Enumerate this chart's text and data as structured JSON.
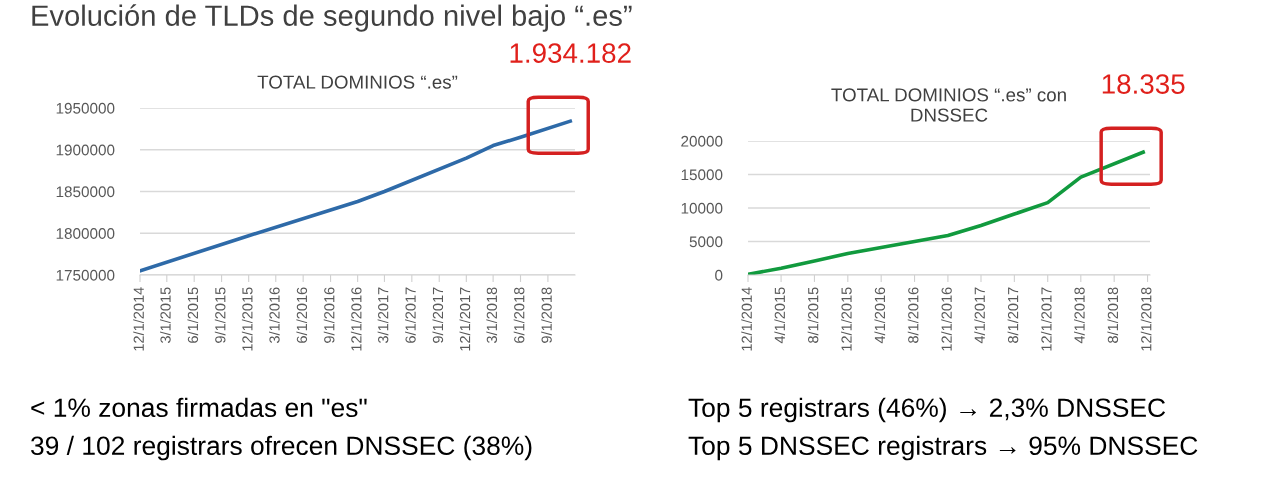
{
  "chart_data": [
    {
      "type": "line",
      "title": "TOTAL DOMINIOS “.es”",
      "x": [
        "2014-12-01",
        "2015-12-01",
        "2016-12-01",
        "2017-03-01",
        "2017-12-01",
        "2018-03-01",
        "2018-06-01",
        "2018-11-15"
      ],
      "series": [
        {
          "color": "#2e6aa8",
          "values": [
            1755000,
            1797000,
            1838000,
            1850000,
            1890000,
            1905000,
            1915000,
            1934182
          ]
        }
      ],
      "xlim": [
        "2014-12-01",
        "2018-12-01"
      ],
      "xticks": [
        {
          "value": "2014-12-01",
          "label": "12/1/2014"
        },
        {
          "value": "2015-03-01",
          "label": "3/1/2015"
        },
        {
          "value": "2015-06-01",
          "label": "6/1/2015"
        },
        {
          "value": "2015-09-01",
          "label": "9/1/2015"
        },
        {
          "value": "2015-12-01",
          "label": "12/1/2015"
        },
        {
          "value": "2016-03-01",
          "label": "3/1/2016"
        },
        {
          "value": "2016-06-01",
          "label": "6/1/2016"
        },
        {
          "value": "2016-09-01",
          "label": "9/1/2016"
        },
        {
          "value": "2016-12-01",
          "label": "12/1/2016"
        },
        {
          "value": "2017-03-01",
          "label": "3/1/2017"
        },
        {
          "value": "2017-06-01",
          "label": "6/1/2017"
        },
        {
          "value": "2017-09-01",
          "label": "9/1/2017"
        },
        {
          "value": "2017-12-01",
          "label": "12/1/2017"
        },
        {
          "value": "2018-03-01",
          "label": "3/1/2018"
        },
        {
          "value": "2018-06-01",
          "label": "6/1/2018"
        },
        {
          "value": "2018-09-01",
          "label": "9/1/2018"
        }
      ],
      "ylim": [
        1750000,
        1950000
      ],
      "yticks": [
        1750000,
        1800000,
        1850000,
        1900000,
        1950000
      ],
      "grid": "y",
      "marker": "none",
      "line_style": "solid",
      "annotations": [
        "Evolución de TLDs de segundo nivel bajo “.es”",
        "< 1% zonas firmadas en \"es\"",
        "39 / 102 registrars ofrecen DNSSEC (38%)",
        {
          "text": "1.934.182",
          "x": "2018-11-15",
          "y": 1934182
        }
      ]
    },
    {
      "type": "line",
      "title": "TOTAL DOMINIOS “.es” con\nDNSSEC",
      "x": [
        "2014-12-01",
        "2015-04-01",
        "2015-08-01",
        "2015-12-01",
        "2016-04-01",
        "2016-08-01",
        "2016-12-01",
        "2017-04-01",
        "2017-08-01",
        "2017-12-01",
        "2018-04-01",
        "2018-05-01",
        "2018-11-15"
      ],
      "series": [
        {
          "color": "#119a3e",
          "values": [
            100,
            1000,
            2100,
            3200,
            4100,
            5000,
            5900,
            7400,
            9100,
            10800,
            14600,
            15100,
            18335
          ]
        }
      ],
      "xlim": [
        "2014-12-01",
        "2018-12-10"
      ],
      "xticks": [
        {
          "value": "2014-12-01",
          "label": "12/1/2014"
        },
        {
          "value": "2015-04-01",
          "label": "4/1/2015"
        },
        {
          "value": "2015-08-01",
          "label": "8/1/2015"
        },
        {
          "value": "2015-12-01",
          "label": "12/1/2015"
        },
        {
          "value": "2016-04-01",
          "label": "4/1/2016"
        },
        {
          "value": "2016-08-01",
          "label": "8/1/2016"
        },
        {
          "value": "2016-12-01",
          "label": "12/1/2016"
        },
        {
          "value": "2017-04-01",
          "label": "4/1/2017"
        },
        {
          "value": "2017-08-01",
          "label": "8/1/2017"
        },
        {
          "value": "2017-12-01",
          "label": "12/1/2017"
        },
        {
          "value": "2018-04-01",
          "label": "4/1/2018"
        },
        {
          "value": "2018-08-01",
          "label": "8/1/2018"
        },
        {
          "value": "2018-12-01",
          "label": "12/1/2018"
        }
      ],
      "ylim": [
        0,
        20000
      ],
      "yticks": [
        0,
        5000,
        10000,
        15000,
        20000
      ],
      "grid": "y",
      "marker": "none",
      "line_style": "solid",
      "annotations": [
        "Top 5 registrars (46%) → 2,3% DNSSEC",
        "Top 5 DNSSEC registrars → 95% DNSSEC",
        {
          "text": "18.335",
          "x": "2018-11-15",
          "y": 18335
        }
      ]
    }
  ]
}
